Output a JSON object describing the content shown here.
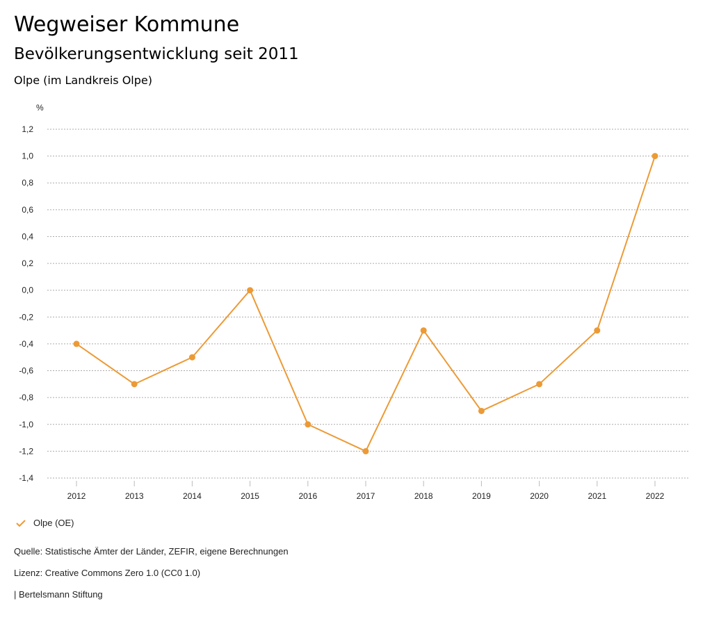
{
  "header": {
    "title": "Wegweiser Kommune",
    "subtitle": "Bevölkerungsentwicklung seit 2011",
    "region": "Olpe (im Landkreis Olpe)"
  },
  "chart_data": {
    "type": "line",
    "ylabel": "%",
    "ylim": [
      -1.4,
      1.2
    ],
    "yticks": [
      "1,2",
      "1,0",
      "0,8",
      "0,6",
      "0,4",
      "0,2",
      "0,0",
      "-0,2",
      "-0,4",
      "-0,6",
      "-0,8",
      "-1,0",
      "-1,2",
      "-1,4"
    ],
    "ytick_values": [
      1.2,
      1.0,
      0.8,
      0.6,
      0.4,
      0.2,
      0.0,
      -0.2,
      -0.4,
      -0.6,
      -0.8,
      -1.0,
      -1.2,
      -1.4
    ],
    "categories": [
      "2012",
      "2013",
      "2014",
      "2015",
      "2016",
      "2017",
      "2018",
      "2019",
      "2020",
      "2021",
      "2022"
    ],
    "series": [
      {
        "name": "Olpe (OE)",
        "color": "#ec9a35",
        "values": [
          -0.4,
          -0.7,
          -0.5,
          0.0,
          -1.0,
          -1.2,
          -0.3,
          -0.9,
          -0.7,
          -0.3,
          1.0
        ]
      }
    ],
    "grid": true,
    "legend": "bottom-left"
  },
  "footer": {
    "source": "Quelle: Statistische Ämter der Länder, ZEFIR, eigene Berechnungen",
    "license": "Lizenz: Creative Commons Zero 1.0 (CC0 1.0)",
    "brand": "| Bertelsmann Stiftung"
  }
}
